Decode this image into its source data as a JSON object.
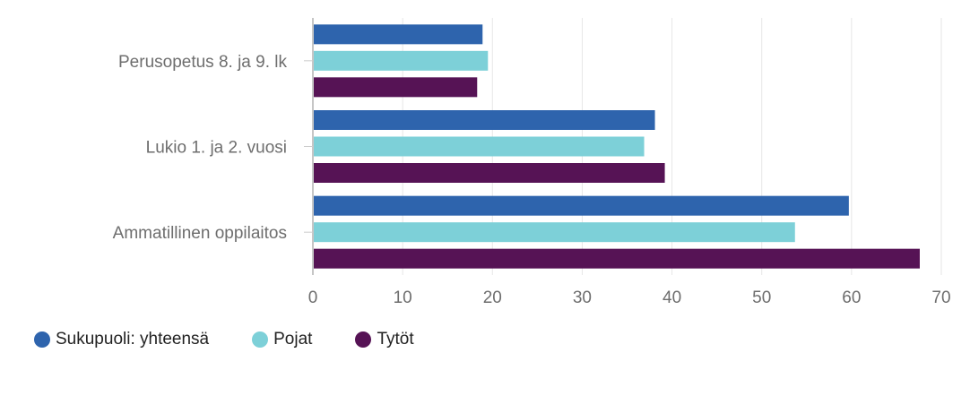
{
  "chart_data": {
    "type": "bar",
    "orientation": "horizontal",
    "categories": [
      "Perusopetus 8. ja 9. lk",
      "Lukio 1. ja 2. vuosi",
      "Ammatillinen oppilaitos"
    ],
    "series": [
      {
        "name": "Sukupuoli: yhteensä",
        "color": "#2e64ad",
        "values": [
          18.9,
          38.1,
          59.7
        ]
      },
      {
        "name": "Pojat",
        "color": "#7dd0d8",
        "values": [
          19.5,
          36.9,
          53.7
        ]
      },
      {
        "name": "Tytöt",
        "color": "#561355",
        "values": [
          18.3,
          39.2,
          67.6
        ]
      }
    ],
    "xlim": [
      0,
      70
    ],
    "xticks": [
      0,
      10,
      20,
      30,
      40,
      50,
      60,
      70
    ],
    "grid": true,
    "legend_position": "bottom-left"
  }
}
